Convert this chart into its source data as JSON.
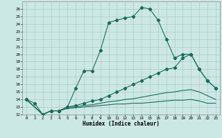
{
  "xlabel": "Humidex (Indice chaleur)",
  "bg_color": "#cce8e4",
  "grid_color": "#aaccca",
  "line_color": "#1a6b5a",
  "xlim": [
    -0.5,
    23.5
  ],
  "ylim": [
    12,
    27
  ],
  "xticks": [
    0,
    1,
    2,
    3,
    4,
    5,
    6,
    7,
    8,
    9,
    10,
    11,
    12,
    13,
    14,
    15,
    16,
    17,
    18,
    19,
    20,
    21,
    22,
    23
  ],
  "yticks": [
    12,
    13,
    14,
    15,
    16,
    17,
    18,
    19,
    20,
    21,
    22,
    23,
    24,
    25,
    26
  ],
  "line1_x": [
    0,
    1,
    2,
    3,
    4,
    5,
    6,
    7,
    8,
    9,
    10,
    11,
    12,
    13,
    14,
    15,
    16,
    17,
    18,
    19,
    20,
    21,
    22,
    23
  ],
  "line1_y": [
    14.0,
    13.5,
    12.0,
    12.5,
    12.5,
    13.0,
    15.5,
    17.8,
    17.8,
    20.5,
    24.2,
    24.5,
    24.8,
    25.0,
    26.2,
    26.0,
    24.5,
    22.0,
    19.5,
    20.0,
    20.0,
    18.0,
    16.5,
    15.5
  ],
  "line2_x": [
    0,
    2,
    3,
    4,
    5,
    6,
    7,
    8,
    9,
    10,
    11,
    12,
    13,
    14,
    15,
    16,
    17,
    18,
    19,
    20,
    21,
    22,
    23
  ],
  "line2_y": [
    14.0,
    12.0,
    12.5,
    12.5,
    13.0,
    13.2,
    13.5,
    13.8,
    14.0,
    14.5,
    15.0,
    15.5,
    16.0,
    16.5,
    17.0,
    17.5,
    18.0,
    18.2,
    19.5,
    20.0,
    18.0,
    16.5,
    15.5
  ],
  "line3_x": [
    0,
    2,
    3,
    4,
    5,
    6,
    7,
    8,
    9,
    10,
    11,
    12,
    13,
    14,
    15,
    16,
    17,
    18,
    19,
    20,
    21,
    22,
    23
  ],
  "line3_y": [
    14.0,
    12.0,
    12.5,
    12.5,
    13.0,
    13.0,
    13.2,
    13.3,
    13.5,
    13.7,
    13.8,
    14.0,
    14.1,
    14.3,
    14.5,
    14.7,
    14.9,
    15.0,
    15.2,
    15.3,
    15.0,
    14.5,
    14.0
  ],
  "line4_x": [
    0,
    2,
    3,
    4,
    5,
    6,
    7,
    8,
    9,
    10,
    11,
    12,
    13,
    14,
    15,
    16,
    17,
    18,
    19,
    20,
    21,
    22,
    23
  ],
  "line4_y": [
    14.0,
    12.0,
    12.5,
    12.5,
    12.8,
    12.9,
    13.0,
    13.1,
    13.2,
    13.3,
    13.4,
    13.4,
    13.5,
    13.5,
    13.6,
    13.7,
    13.8,
    13.9,
    13.9,
    14.0,
    13.8,
    13.5,
    13.5
  ]
}
